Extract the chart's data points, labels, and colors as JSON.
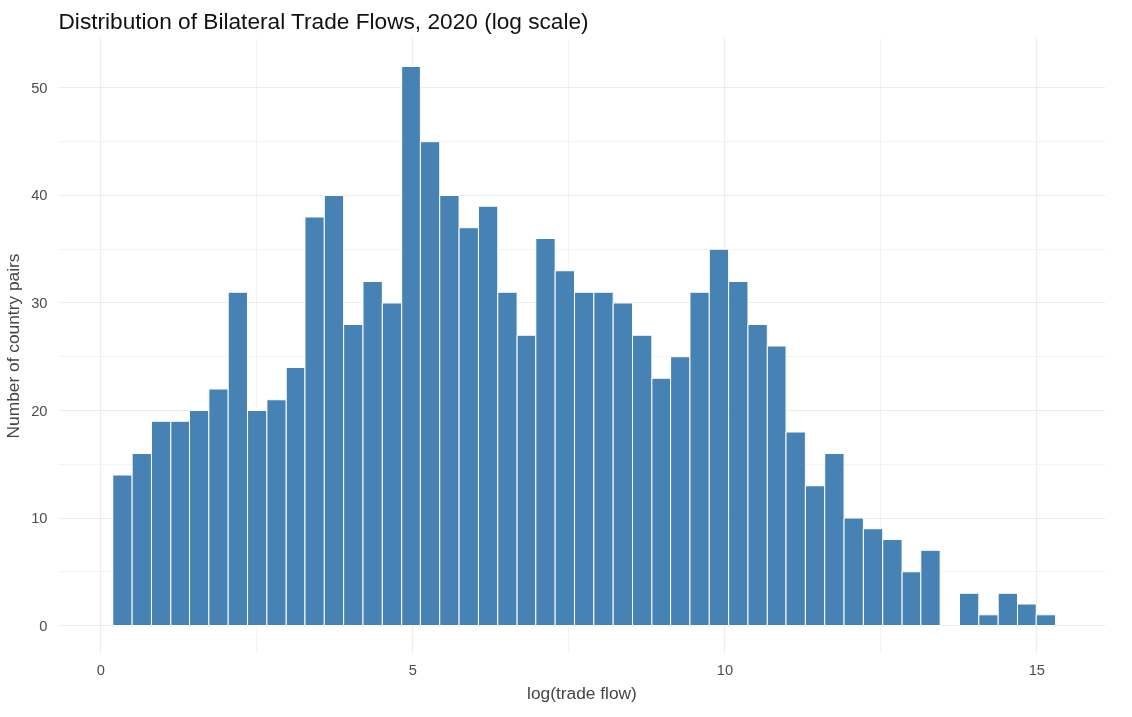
{
  "chart_data": {
    "type": "histogram",
    "title": "Distribution of Bilateral Trade Flows, 2020 (log scale)",
    "xlabel": "log(trade flow)",
    "ylabel": "Number of country pairs",
    "bins": [
      0.19,
      0.5,
      0.81,
      1.12,
      1.42,
      1.73,
      2.04,
      2.35,
      2.66,
      2.97,
      3.27,
      3.58,
      3.89,
      4.2,
      4.51,
      4.82,
      5.12,
      5.43,
      5.74,
      6.05,
      6.36,
      6.67,
      6.97,
      7.28,
      7.59,
      7.9,
      8.21,
      8.52,
      8.83,
      9.13,
      9.44,
      9.75,
      10.06,
      10.37,
      10.68,
      10.98,
      11.29,
      11.6,
      11.91,
      12.22,
      12.53,
      12.84,
      13.14,
      13.45,
      13.76,
      14.07,
      14.38,
      14.69,
      14.99,
      15.3
    ],
    "values": [
      14,
      16,
      19,
      19,
      20,
      22,
      31,
      20,
      21,
      24,
      38,
      40,
      28,
      32,
      30,
      52,
      45,
      40,
      37,
      39,
      31,
      27,
      36,
      33,
      31,
      31,
      30,
      27,
      23,
      25,
      31,
      35,
      32,
      28,
      26,
      18,
      13,
      16,
      10,
      9,
      8,
      5,
      7,
      0,
      3,
      1,
      3,
      2,
      1
    ],
    "color": "#4682b4",
    "xlim": [
      -0.68,
      16.1
    ],
    "ylim": [
      -2.6,
      54.6
    ],
    "xticks": [
      0,
      5,
      10,
      15
    ],
    "yticks": [
      0,
      10,
      20,
      30,
      40,
      50
    ],
    "grid": true
  }
}
